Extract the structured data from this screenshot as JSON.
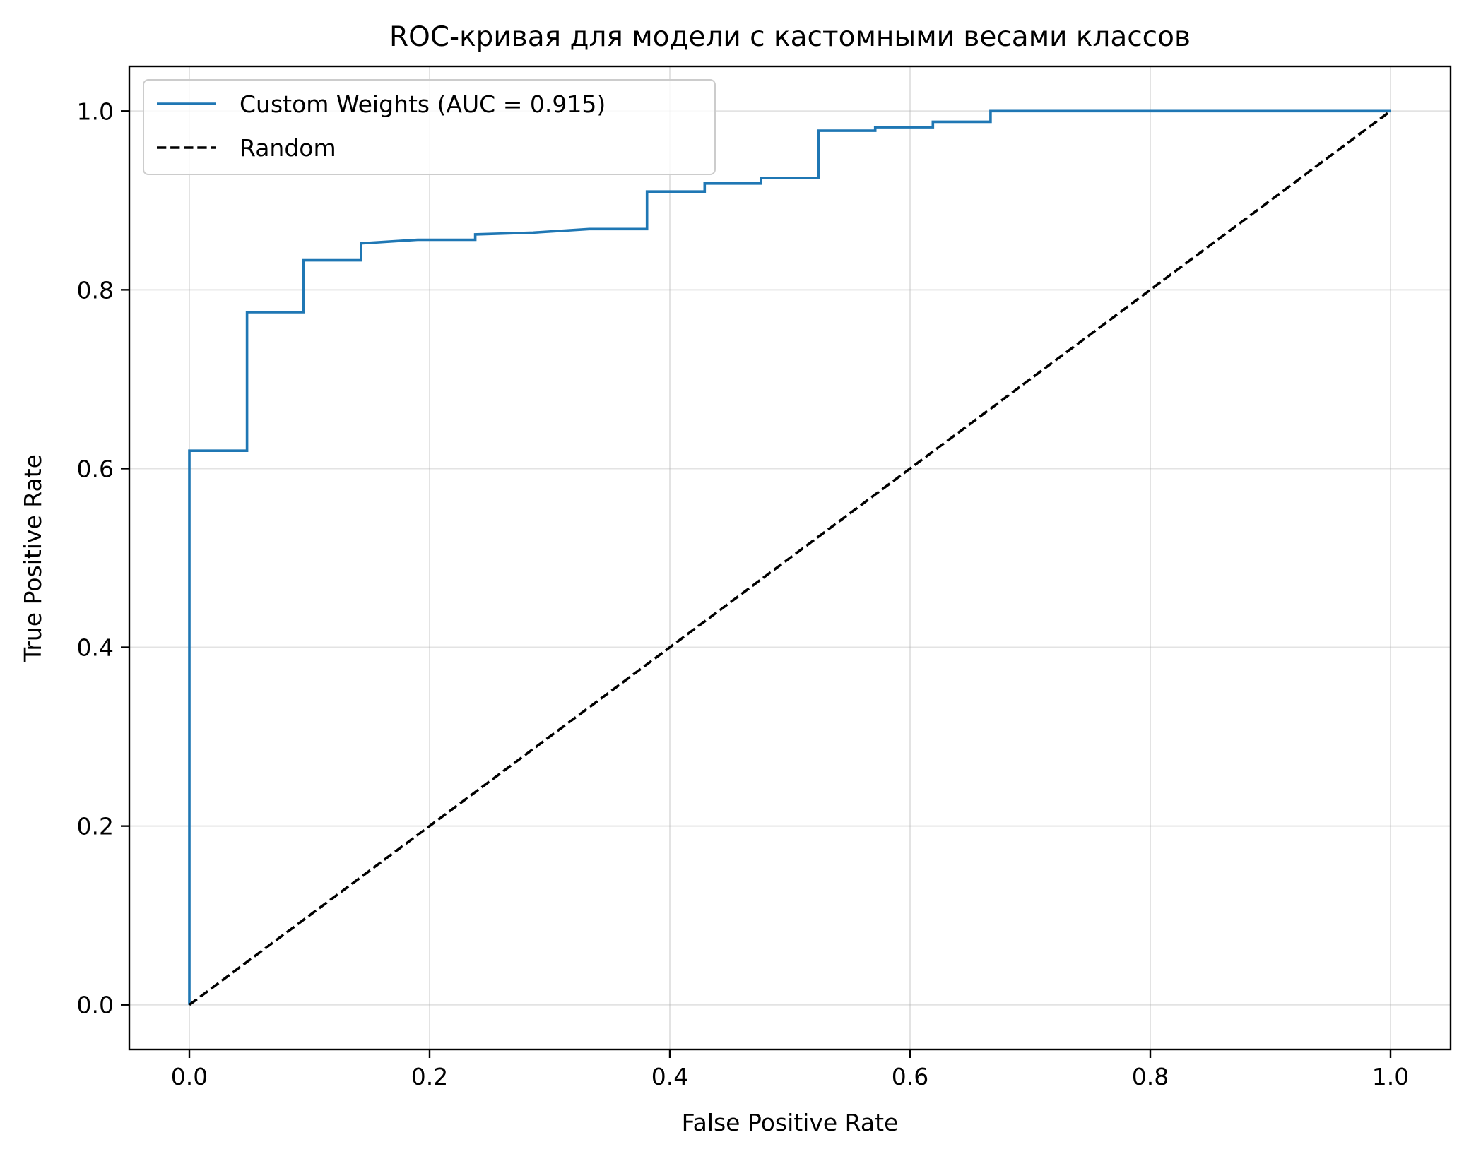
{
  "chart_data": {
    "type": "line",
    "title": "ROC-кривая для модели с кастомными весами классов",
    "xlabel": "False Positive Rate",
    "ylabel": "True Positive Rate",
    "xlim": [
      -0.05,
      1.05
    ],
    "ylim": [
      -0.05,
      1.05
    ],
    "xticks": [
      0.0,
      0.2,
      0.4,
      0.6,
      0.8,
      1.0
    ],
    "yticks": [
      0.0,
      0.2,
      0.4,
      0.6,
      0.8,
      1.0
    ],
    "xtick_labels": [
      "0.0",
      "0.2",
      "0.4",
      "0.6",
      "0.8",
      "1.0"
    ],
    "ytick_labels": [
      "0.0",
      "0.2",
      "0.4",
      "0.6",
      "0.8",
      "1.0"
    ],
    "grid": true,
    "legend_position": "top-left",
    "series": [
      {
        "name": "Custom Weights (AUC = 0.915)",
        "color": "#1f77b4",
        "style": "solid",
        "step": true,
        "x": [
          0.0,
          0.0,
          0.048,
          0.048,
          0.095,
          0.095,
          0.143,
          0.143,
          0.19,
          0.238,
          0.238,
          0.286,
          0.333,
          0.381,
          0.381,
          0.429,
          0.429,
          0.476,
          0.476,
          0.524,
          0.524,
          0.571,
          0.571,
          0.619,
          0.619,
          0.667,
          0.667,
          0.714,
          1.0
        ],
        "y": [
          0.0,
          0.62,
          0.62,
          0.775,
          0.775,
          0.833,
          0.833,
          0.852,
          0.856,
          0.856,
          0.862,
          0.864,
          0.868,
          0.868,
          0.91,
          0.91,
          0.919,
          0.919,
          0.925,
          0.925,
          0.978,
          0.978,
          0.982,
          0.982,
          0.988,
          0.988,
          1.0,
          1.0,
          1.0
        ]
      },
      {
        "name": "Random",
        "color": "#000000",
        "style": "dashed",
        "step": false,
        "x": [
          0.0,
          1.0
        ],
        "y": [
          0.0,
          1.0
        ]
      }
    ]
  }
}
